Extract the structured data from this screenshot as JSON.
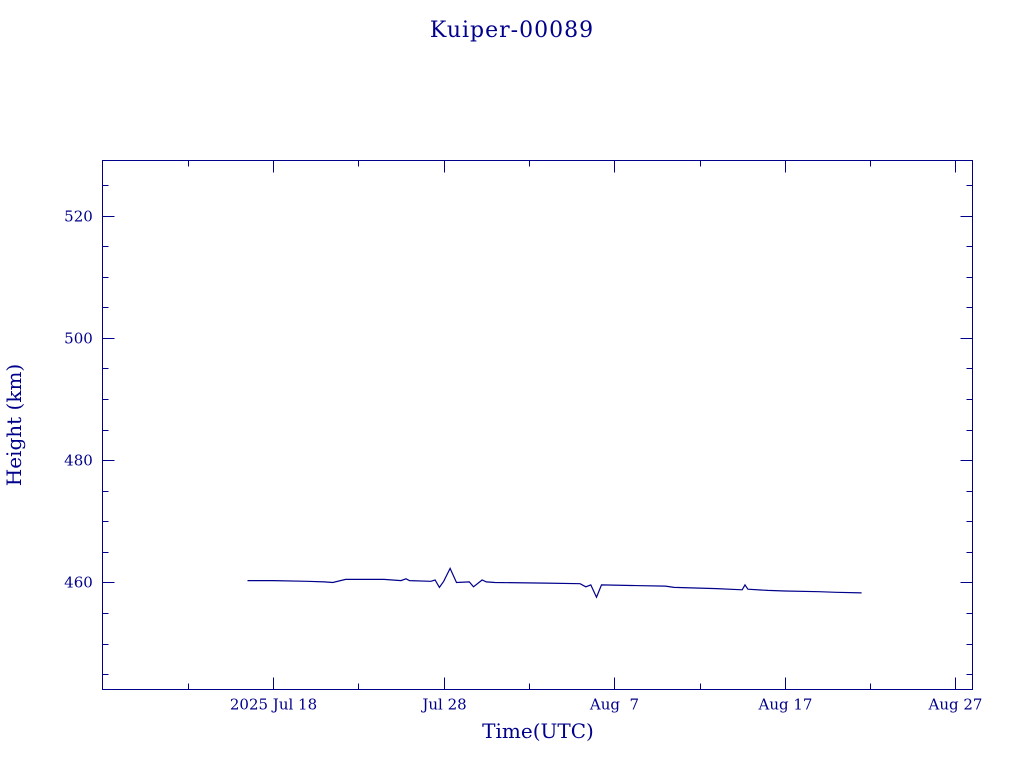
{
  "chart_data": {
    "type": "line",
    "title": "Kuiper-00089",
    "xlabel": "Time(UTC)",
    "ylabel": "Height (km)",
    "x_unit": "date (2025)",
    "xlim": [
      "2025-07-08",
      "2025-08-28"
    ],
    "ylim": [
      442.5,
      529
    ],
    "x_ticks": [
      {
        "date": "2025-07-18",
        "label": "2025 Jul 18"
      },
      {
        "date": "2025-07-28",
        "label": "Jul 28"
      },
      {
        "date": "2025-08-07",
        "label": "Aug  7"
      },
      {
        "date": "2025-08-17",
        "label": "Aug 17"
      },
      {
        "date": "2025-08-27",
        "label": "Aug 27"
      }
    ],
    "x_minor_dates": [
      "2025-07-13",
      "2025-07-23",
      "2025-08-02",
      "2025-08-12",
      "2025-08-22"
    ],
    "y_ticks": [
      460,
      480,
      500,
      520
    ],
    "y_minor_step": 5,
    "grid": false,
    "legend": "none",
    "series": [
      {
        "points": [
          [
            "2025-07-16T12:00",
            460.3
          ],
          [
            "2025-07-18T00:00",
            460.3
          ],
          [
            "2025-07-20T00:00",
            460.2
          ],
          [
            "2025-07-21T00:00",
            460.1
          ],
          [
            "2025-07-21T12:00",
            460.0
          ],
          [
            "2025-07-22T06:00",
            460.5
          ],
          [
            "2025-07-24T12:00",
            460.5
          ],
          [
            "2025-07-25T12:00",
            460.3
          ],
          [
            "2025-07-25T19:00",
            460.6
          ],
          [
            "2025-07-26T00:00",
            460.3
          ],
          [
            "2025-07-27T06:00",
            460.2
          ],
          [
            "2025-07-27T12:00",
            460.4
          ],
          [
            "2025-07-27T18:00",
            459.2
          ],
          [
            "2025-07-28T00:00",
            460.2
          ],
          [
            "2025-07-28T09:00",
            462.3
          ],
          [
            "2025-07-28T18:00",
            460.0
          ],
          [
            "2025-07-29T12:00",
            460.1
          ],
          [
            "2025-07-29T18:00",
            459.3
          ],
          [
            "2025-07-30T06:00",
            460.4
          ],
          [
            "2025-07-30T12:00",
            460.1
          ],
          [
            "2025-07-31T00:00",
            460.0
          ],
          [
            "2025-08-03T00:00",
            459.9
          ],
          [
            "2025-08-05T00:00",
            459.8
          ],
          [
            "2025-08-05T08:00",
            459.3
          ],
          [
            "2025-08-05T15:00",
            459.6
          ],
          [
            "2025-08-05T23:00",
            457.6
          ],
          [
            "2025-08-06T06:00",
            459.6
          ],
          [
            "2025-08-08T00:00",
            459.5
          ],
          [
            "2025-08-10T00:00",
            459.4
          ],
          [
            "2025-08-10T12:00",
            459.2
          ],
          [
            "2025-08-13T00:00",
            459.0
          ],
          [
            "2025-08-14T12:00",
            458.8
          ],
          [
            "2025-08-14T16:00",
            459.6
          ],
          [
            "2025-08-14T20:00",
            458.9
          ],
          [
            "2025-08-16T00:00",
            458.7
          ],
          [
            "2025-08-17T00:00",
            458.6
          ],
          [
            "2025-08-19T00:00",
            458.5
          ],
          [
            "2025-08-20T00:00",
            458.4
          ],
          [
            "2025-08-21T12:00",
            458.3
          ]
        ]
      }
    ]
  }
}
